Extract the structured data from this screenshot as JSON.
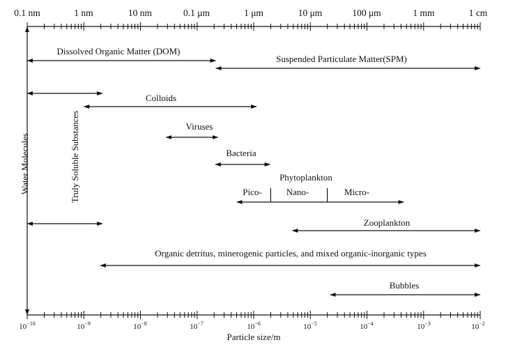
{
  "top_axis": {
    "labels": [
      "0.1 nm",
      "1 nm",
      "10 nm",
      "0.1 μm",
      "1 μm",
      "10 μm",
      "100 μm",
      "1 mm",
      "1 cm"
    ]
  },
  "bottom_axis": {
    "label_base": "10",
    "exponents": [
      "−10",
      "−9",
      "−8",
      "−7",
      "−6",
      "−5",
      "−4",
      "−3",
      "−2"
    ],
    "title": "Particle size/m"
  },
  "ranges": [
    {
      "name": "dom",
      "label": "Dissolved Organic Matter (DOM)",
      "from": -10,
      "to": -6.67
    },
    {
      "name": "spm",
      "label": "Suspended Particulate Matter(SPM)",
      "from": -6.67,
      "to": -2
    },
    {
      "name": "truly-soluble-top",
      "label": "",
      "from": -10,
      "to": -8.67
    },
    {
      "name": "colloids",
      "label": "Colloids",
      "from": -9,
      "to": -5.95
    },
    {
      "name": "viruses",
      "label": "Viruses",
      "from": -7.55,
      "to": -6.63
    },
    {
      "name": "bacteria",
      "label": "Bacteria",
      "from": -6.68,
      "to": -5.71
    },
    {
      "name": "phytoplankton",
      "label": "",
      "from": -6.3,
      "to": -3.35
    },
    {
      "name": "truly-soluble-bottom",
      "label": "",
      "from": -10,
      "to": -8.67
    },
    {
      "name": "zooplankton",
      "label": "Zooplankton",
      "from": -5.32,
      "to": -2
    },
    {
      "name": "detritus",
      "label": "Organic detritus, minerogenic particles, and mixed organic-inorganic types",
      "from": -8.71,
      "to": -2
    },
    {
      "name": "bubbles",
      "label": "Bubbles",
      "from": -4.65,
      "to": -2
    }
  ],
  "phytoplankton": {
    "title": "Phytoplankton",
    "classes": [
      "Pico-",
      "Nano-",
      "Micro-"
    ],
    "dividers": [
      -5.7,
      -4.7
    ]
  },
  "vertical_labels": {
    "water": "Water Molecules",
    "truly_soluble": "Truly Soluble Substances"
  }
}
